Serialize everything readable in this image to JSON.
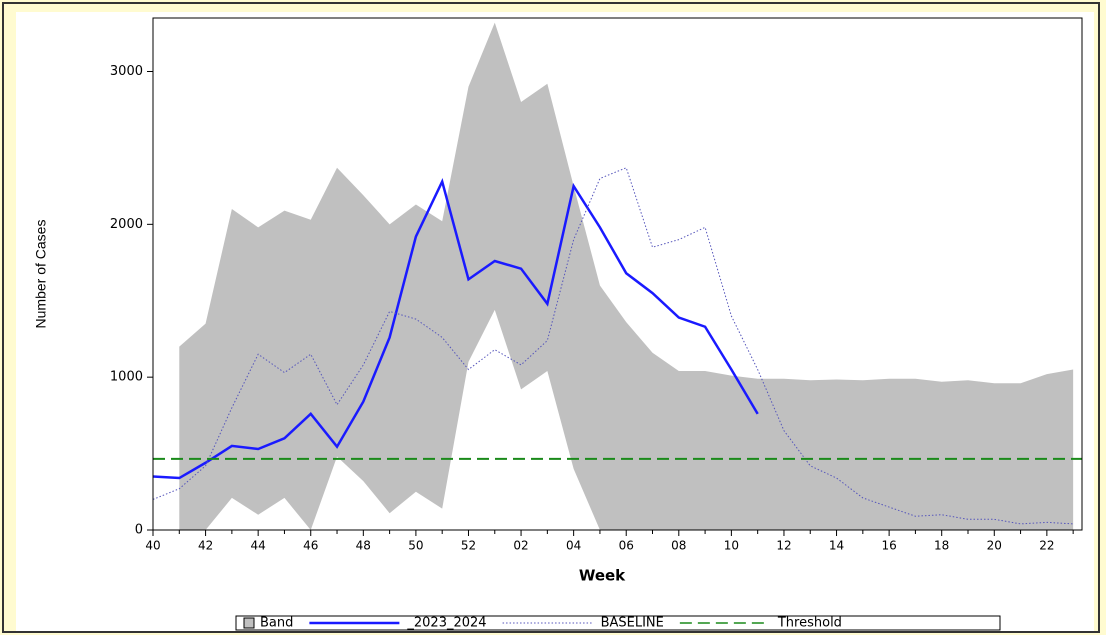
{
  "chart_data": {
    "type": "line",
    "x_label": "Week",
    "y_label": "Number of Cases",
    "categories": [
      "40",
      null,
      "42",
      null,
      "44",
      null,
      "46",
      null,
      "48",
      null,
      "50",
      null,
      "52",
      null,
      "02",
      null,
      "04",
      null,
      "06",
      null,
      "08",
      null,
      "10",
      null,
      "12",
      null,
      "14",
      null,
      "16",
      null,
      "18",
      null,
      "20",
      null,
      "22",
      null
    ],
    "ylim": [
      0,
      3350
    ],
    "yticks": [
      0,
      1000,
      2000,
      3000
    ],
    "series": [
      {
        "name": "Band",
        "kind": "band",
        "color": "#c0c0c0",
        "upper": [
          null,
          1200,
          1350,
          2100,
          1980,
          2090,
          2030,
          2370,
          2190,
          2000,
          2130,
          2020,
          2900,
          3320,
          2800,
          2920,
          2250,
          1600,
          1360,
          1160,
          1040,
          1040,
          1010,
          990,
          990,
          980,
          985,
          980,
          990,
          990,
          970,
          980,
          960,
          960,
          1020,
          1050
        ],
        "lower": [
          null,
          0,
          0,
          210,
          100,
          210,
          0,
          480,
          320,
          110,
          250,
          140,
          1100,
          1440,
          920,
          1040,
          400,
          0,
          0,
          0,
          0,
          0,
          0,
          0,
          0,
          0,
          0,
          0,
          0,
          0,
          0,
          0,
          0,
          0,
          0,
          0
        ]
      },
      {
        "name": "_2023_2024",
        "kind": "solid",
        "color": "#1a1aff",
        "values": [
          350,
          340,
          440,
          550,
          530,
          600,
          760,
          545,
          840,
          1260,
          1920,
          2280,
          1640,
          1760,
          1710,
          1480,
          2250,
          1980,
          1680,
          1550,
          1390,
          1330,
          1050,
          760,
          null,
          null,
          null,
          null,
          null,
          null,
          null,
          null,
          null,
          null,
          null,
          null
        ]
      },
      {
        "name": "BASELINE",
        "kind": "dotted",
        "color": "#5555bb",
        "values": [
          200,
          270,
          420,
          800,
          1150,
          1030,
          1150,
          820,
          1080,
          1430,
          1380,
          1260,
          1050,
          1180,
          1080,
          1240,
          1900,
          2300,
          2370,
          1850,
          1900,
          1980,
          1400,
          1050,
          650,
          420,
          340,
          210,
          150,
          90,
          100,
          70,
          70,
          40,
          50,
          40
        ]
      },
      {
        "name": "Threshold",
        "kind": "dashed",
        "color": "#1a8a1a",
        "value": 465
      }
    ]
  }
}
